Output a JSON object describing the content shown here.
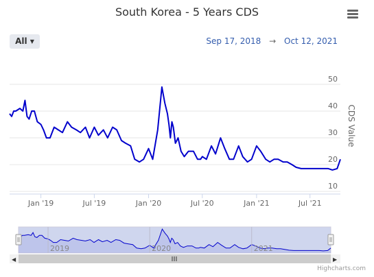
{
  "header": {
    "title": "South Korea - 5 Years CDS",
    "range_button": "All",
    "date_from": "Sep 17, 2018",
    "date_arrow": "→",
    "date_to": "Oct 12, 2021"
  },
  "credit": "Highcharts.com",
  "colors": {
    "series": "#0000cc",
    "navigator_fill": "#cfd6ee",
    "grid": "#e6e6e6"
  },
  "icons": {
    "menu": "hamburger-menu-icon"
  },
  "chart_data": {
    "type": "line",
    "title": "South Korea - 5 Years CDS",
    "ylabel": "CDS Value",
    "ylim": [
      9,
      60
    ],
    "xlim": [
      "2018-09-17",
      "2021-10-12"
    ],
    "yticks": [
      10,
      20,
      30,
      40,
      50
    ],
    "xticks": [
      {
        "label": "Jan '19",
        "date": "2019-01-01"
      },
      {
        "label": "Jul '19",
        "date": "2019-07-01"
      },
      {
        "label": "Jan '20",
        "date": "2020-01-01"
      },
      {
        "label": "Jul '20",
        "date": "2020-07-01"
      },
      {
        "label": "Jan '21",
        "date": "2021-01-01"
      },
      {
        "label": "Jul '21",
        "date": "2021-07-01"
      }
    ],
    "navigator_labels": [
      {
        "label": "2019",
        "date": "2019-01-01"
      },
      {
        "label": "2020",
        "date": "2020-01-01"
      },
      {
        "label": "2021",
        "date": "2021-01-01"
      }
    ],
    "grid": true,
    "legend": "none",
    "series": [
      {
        "x": [
          "2018-09-17",
          "2018-09-24",
          "2018-10-01",
          "2018-10-08",
          "2018-10-22",
          "2018-11-01",
          "2018-11-08",
          "2018-11-15",
          "2018-11-22",
          "2018-12-01",
          "2018-12-10",
          "2018-12-20",
          "2019-01-01",
          "2019-01-10",
          "2019-01-20",
          "2019-02-01",
          "2019-02-15",
          "2019-03-01",
          "2019-03-15",
          "2019-04-01",
          "2019-04-15",
          "2019-05-01",
          "2019-05-15",
          "2019-06-01",
          "2019-06-15",
          "2019-07-01",
          "2019-07-15",
          "2019-08-01",
          "2019-08-15",
          "2019-09-01",
          "2019-09-15",
          "2019-10-01",
          "2019-10-15",
          "2019-11-01",
          "2019-11-15",
          "2019-12-01",
          "2019-12-15",
          "2020-01-01",
          "2020-01-15",
          "2020-02-01",
          "2020-02-15",
          "2020-02-25",
          "2020-03-05",
          "2020-03-10",
          "2020-03-15",
          "2020-03-20",
          "2020-03-25",
          "2020-04-01",
          "2020-04-10",
          "2020-04-20",
          "2020-05-01",
          "2020-05-15",
          "2020-06-01",
          "2020-06-15",
          "2020-06-25",
          "2020-07-01",
          "2020-07-15",
          "2020-08-01",
          "2020-08-15",
          "2020-09-01",
          "2020-09-15",
          "2020-10-01",
          "2020-10-15",
          "2020-11-01",
          "2020-11-15",
          "2020-12-01",
          "2020-12-15",
          "2021-01-01",
          "2021-01-15",
          "2021-02-01",
          "2021-02-15",
          "2021-03-01",
          "2021-03-15",
          "2021-04-01",
          "2021-04-15",
          "2021-05-01",
          "2021-05-15",
          "2021-06-01",
          "2021-06-15",
          "2021-07-01",
          "2021-07-15",
          "2021-08-01",
          "2021-08-15",
          "2021-09-01",
          "2021-09-15",
          "2021-10-01",
          "2021-10-12"
        ],
        "y": [
          39,
          38,
          40,
          40,
          41,
          40,
          44,
          38,
          37,
          40,
          40,
          36,
          35,
          33,
          30,
          30,
          34,
          33,
          32,
          36,
          34,
          33,
          32,
          34,
          30,
          34,
          31,
          33,
          30,
          34,
          33,
          29,
          28,
          27,
          22,
          21,
          22,
          26,
          22,
          33,
          49,
          43,
          39,
          35,
          30,
          36,
          34,
          28,
          30,
          25,
          23,
          25,
          25,
          22,
          22,
          23,
          22,
          27,
          24,
          30,
          26,
          22,
          22,
          27,
          23,
          21,
          22,
          27,
          25,
          22,
          21,
          22,
          22,
          21,
          21,
          20,
          19,
          18.5,
          18.5,
          18.5,
          18.5,
          18.5,
          18.5,
          18.5,
          18,
          18.5,
          22
        ]
      }
    ]
  }
}
